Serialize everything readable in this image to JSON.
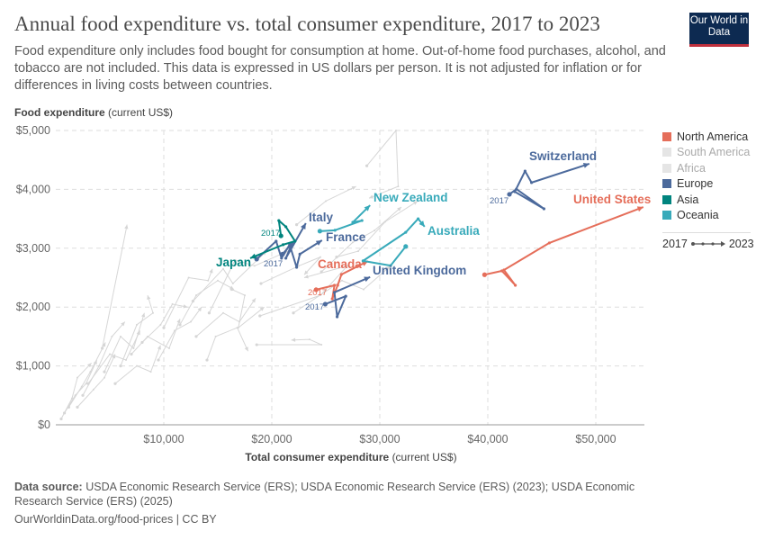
{
  "header": {
    "title": "Annual food expenditure vs. total consumer expenditure, 2017 to 2023",
    "subtitle": "Food expenditure only includes food bought for consumption at home. Out-of-home food purchases, alcohol, and tobacco are not included. This data is expressed in US dollars per person. It is not adjusted for inflation or for differences in living costs between countries.",
    "logo": "Our World in Data"
  },
  "chart_data": {
    "type": "scatter",
    "connected": true,
    "title": "Annual food expenditure vs. total consumer expenditure, 2017 to 2023",
    "xlabel_bold": "Total consumer expenditure",
    "xlabel_unit": "(current US$)",
    "ylabel_bold": "Food expenditure",
    "ylabel_unit": "(current US$)",
    "xlim": [
      0,
      54500
    ],
    "ylim": [
      0,
      5000
    ],
    "xticks": [
      {
        "v": 10000,
        "label": "$10,000"
      },
      {
        "v": 20000,
        "label": "$20,000"
      },
      {
        "v": 30000,
        "label": "$30,000"
      },
      {
        "v": 40000,
        "label": "$40,000"
      },
      {
        "v": 50000,
        "label": "$50,000"
      }
    ],
    "yticks": [
      {
        "v": 0,
        "label": "$0"
      },
      {
        "v": 1000,
        "label": "$1,000"
      },
      {
        "v": 2000,
        "label": "$2,000"
      },
      {
        "v": 3000,
        "label": "$3,000"
      },
      {
        "v": 4000,
        "label": "$4,000"
      },
      {
        "v": 5000,
        "label": "$5,000"
      }
    ],
    "grid": true,
    "legend": {
      "position": "right",
      "items": [
        {
          "label": "North America",
          "color": "#e56e5a"
        },
        {
          "label": "South America",
          "color": "#e5e5e5",
          "muted": true
        },
        {
          "label": "Africa",
          "color": "#e5e5e5",
          "muted": true
        },
        {
          "label": "Europe",
          "color": "#4c6a9c"
        },
        {
          "label": "Asia",
          "color": "#00847e"
        },
        {
          "label": "Oceania",
          "color": "#38aaba"
        }
      ],
      "time_start": "2017",
      "time_end": "2023"
    },
    "start_year_label": "2017",
    "series": [
      {
        "name": "United States",
        "region": "North America",
        "color": "#e56e5a",
        "points": [
          [
            39700,
            2550
          ],
          [
            41300,
            2615
          ],
          [
            42550,
            2370
          ],
          [
            41500,
            2630
          ],
          [
            45700,
            3090
          ],
          [
            54400,
            3700
          ]
        ]
      },
      {
        "name": "Canada",
        "region": "North America",
        "color": "#e56e5a",
        "points": [
          [
            24100,
            2295
          ],
          [
            25800,
            2370
          ],
          [
            25600,
            2140
          ],
          [
            26100,
            2370
          ],
          [
            26450,
            2555
          ],
          [
            28900,
            2780
          ]
        ]
      },
      {
        "name": "Switzerland",
        "region": "Europe",
        "color": "#4c6a9c",
        "points": [
          [
            42000,
            3915
          ],
          [
            42650,
            4005
          ],
          [
            45200,
            3670
          ],
          [
            42500,
            3960
          ],
          [
            43450,
            4310
          ],
          [
            44050,
            4115
          ],
          [
            49400,
            4435
          ]
        ]
      },
      {
        "name": "United Kingdom",
        "region": "Europe",
        "color": "#4c6a9c",
        "points": [
          [
            24950,
            2050
          ],
          [
            26850,
            2185
          ],
          [
            26050,
            1835
          ],
          [
            25800,
            2250
          ],
          [
            29100,
            2510
          ]
        ]
      },
      {
        "name": "France",
        "region": "Europe",
        "color": "#4c6a9c",
        "points": [
          [
            18600,
            2815
          ],
          [
            20400,
            3120
          ],
          [
            20900,
            2830
          ],
          [
            21650,
            3060
          ],
          [
            22300,
            2675
          ],
          [
            22600,
            2900
          ],
          [
            24650,
            3135
          ]
        ]
      },
      {
        "name": "Italy",
        "region": "Europe",
        "color": "#4c6a9c",
        "points": [
          [
            21000,
            2900
          ],
          [
            21900,
            3090
          ],
          [
            21300,
            2830
          ],
          [
            23150,
            3425
          ]
        ]
      },
      {
        "name": "Japan",
        "region": "Asia",
        "color": "#00847e",
        "points": [
          [
            20850,
            3210
          ],
          [
            20650,
            3470
          ],
          [
            21300,
            3365
          ],
          [
            22150,
            3120
          ],
          [
            21050,
            3060
          ],
          [
            18000,
            2830
          ]
        ]
      },
      {
        "name": "Australia",
        "region": "Oceania",
        "color": "#38aaba",
        "points": [
          [
            32400,
            3030
          ],
          [
            31000,
            2705
          ],
          [
            28450,
            2785
          ],
          [
            32400,
            3270
          ],
          [
            33550,
            3500
          ],
          [
            34150,
            3365
          ]
        ]
      },
      {
        "name": "New Zealand",
        "region": "Oceania",
        "color": "#38aaba",
        "points": [
          [
            24450,
            3290
          ],
          [
            25850,
            3305
          ],
          [
            28350,
            3470
          ],
          [
            27500,
            3440
          ],
          [
            29100,
            3730
          ]
        ]
      },
      {
        "color": "#d6d6d6",
        "points": [
          [
            28800,
            4400
          ],
          [
            31500,
            5000
          ],
          [
            31700,
            4050
          ],
          [
            29000,
            3850
          ]
        ]
      },
      {
        "color": "#d6d6d6",
        "points": [
          [
            22300,
            3400
          ],
          [
            25000,
            3800
          ],
          [
            27800,
            4050
          ]
        ]
      },
      {
        "color": "#d6d6d6",
        "points": [
          [
            4300,
            1300
          ],
          [
            6600,
            3400
          ]
        ]
      },
      {
        "color": "#d6d6d6",
        "points": [
          [
            18600,
            1360
          ],
          [
            24600,
            1360
          ],
          [
            23500,
            1450
          ],
          [
            21800,
            1440
          ]
        ]
      },
      {
        "color": "#d6d6d6",
        "points": [
          [
            18900,
            1850
          ],
          [
            24500,
            2200
          ],
          [
            27000,
            2700
          ],
          [
            23000,
            2500
          ]
        ]
      },
      {
        "color": "#d6d6d6",
        "points": [
          [
            12700,
            2100
          ],
          [
            15500,
            2650
          ],
          [
            16400,
            2400
          ],
          [
            19500,
            2950
          ]
        ]
      },
      {
        "color": "#d6d6d6",
        "points": [
          [
            10000,
            1650
          ],
          [
            12300,
            2500
          ],
          [
            14100,
            2450
          ],
          [
            14500,
            2650
          ]
        ]
      },
      {
        "color": "#d6d6d6",
        "points": [
          [
            14200,
            1900
          ],
          [
            16600,
            2800
          ],
          [
            18400,
            2700
          ],
          [
            21500,
            2950
          ]
        ]
      },
      {
        "color": "#d6d6d6",
        "points": [
          [
            16300,
            2300
          ],
          [
            17500,
            2200
          ],
          [
            16900,
            1650
          ],
          [
            19300,
            2000
          ]
        ]
      },
      {
        "color": "#d6d6d6",
        "points": [
          [
            19000,
            2400
          ],
          [
            22500,
            2700
          ],
          [
            24500,
            2850
          ],
          [
            23000,
            2550
          ]
        ]
      },
      {
        "color": "#d6d6d6",
        "points": [
          [
            24600,
            2600
          ],
          [
            27500,
            3100
          ],
          [
            29500,
            3300
          ],
          [
            32000,
            3700
          ]
        ]
      },
      {
        "color": "#d6d6d6",
        "points": [
          [
            26000,
            2850
          ],
          [
            28000,
            2950
          ],
          [
            30500,
            3450
          ],
          [
            33500,
            3800
          ]
        ]
      },
      {
        "color": "#d6d6d6",
        "points": [
          [
            8000,
            1400
          ],
          [
            9700,
            1700
          ],
          [
            10800,
            2050
          ],
          [
            12200,
            2000
          ]
        ]
      },
      {
        "color": "#d6d6d6",
        "points": [
          [
            6000,
            1000
          ],
          [
            7500,
            1700
          ],
          [
            9000,
            1900
          ],
          [
            8500,
            2200
          ]
        ]
      },
      {
        "color": "#d6d6d6",
        "points": [
          [
            4500,
            900
          ],
          [
            6000,
            1500
          ],
          [
            7200,
            1300
          ],
          [
            8200,
            1900
          ]
        ]
      },
      {
        "color": "#d6d6d6",
        "points": [
          [
            2500,
            500
          ],
          [
            4000,
            1000
          ],
          [
            5200,
            1500
          ],
          [
            6400,
            1750
          ]
        ]
      },
      {
        "color": "#d6d6d6",
        "points": [
          [
            1200,
            300
          ],
          [
            2400,
            650
          ],
          [
            3200,
            900
          ],
          [
            4600,
            1400
          ]
        ]
      },
      {
        "color": "#d6d6d6",
        "points": [
          [
            500,
            100
          ],
          [
            1500,
            450
          ],
          [
            2000,
            800
          ],
          [
            3300,
            1050
          ]
        ]
      },
      {
        "color": "#d6d6d6",
        "points": [
          [
            3000,
            700
          ],
          [
            5000,
            1200
          ],
          [
            6500,
            1100
          ],
          [
            7800,
            1600
          ]
        ]
      },
      {
        "color": "#d6d6d6",
        "points": [
          [
            7000,
            1200
          ],
          [
            8500,
            1500
          ],
          [
            10500,
            1300
          ],
          [
            11500,
            1800
          ]
        ]
      },
      {
        "color": "#d6d6d6",
        "points": [
          [
            9500,
            1100
          ],
          [
            11000,
            1600
          ],
          [
            12500,
            1750
          ],
          [
            13500,
            2000
          ]
        ]
      },
      {
        "color": "#d6d6d6",
        "points": [
          [
            11500,
            1700
          ],
          [
            13000,
            2200
          ],
          [
            15000,
            2450
          ],
          [
            16500,
            2300
          ]
        ]
      },
      {
        "color": "#d6d6d6",
        "points": [
          [
            13000,
            1500
          ],
          [
            15500,
            1900
          ],
          [
            17000,
            1750
          ],
          [
            18500,
            2150
          ]
        ]
      },
      {
        "color": "#d6d6d6",
        "points": [
          [
            2000,
            300
          ],
          [
            3500,
            600
          ],
          [
            4500,
            800
          ],
          [
            5500,
            1200
          ]
        ]
      },
      {
        "color": "#d6d6d6",
        "points": [
          [
            800,
            200
          ],
          [
            1800,
            500
          ],
          [
            2800,
            700
          ],
          [
            3800,
            1100
          ]
        ]
      },
      {
        "color": "#d6d6d6",
        "points": [
          [
            5500,
            700
          ],
          [
            7500,
            1000
          ],
          [
            8800,
            900
          ],
          [
            9700,
            1350
          ]
        ]
      },
      {
        "color": "#d6d6d6",
        "points": [
          [
            22000,
            1900
          ],
          [
            26500,
            2450
          ],
          [
            28500,
            2300
          ],
          [
            31000,
            2700
          ]
        ]
      },
      {
        "color": "#d6d6d6",
        "points": [
          [
            14000,
            1100
          ],
          [
            14800,
            1500
          ],
          [
            16800,
            1650
          ],
          [
            17800,
            1250
          ]
        ]
      }
    ]
  },
  "footer": {
    "source_label": "Data source:",
    "source": "USDA Economic Research Service (ERS); USDA Economic Research Service (ERS) (2023); USDA Economic Research Service (ERS) (2025)",
    "url": "OurWorldinData.org/food-prices | CC BY"
  }
}
